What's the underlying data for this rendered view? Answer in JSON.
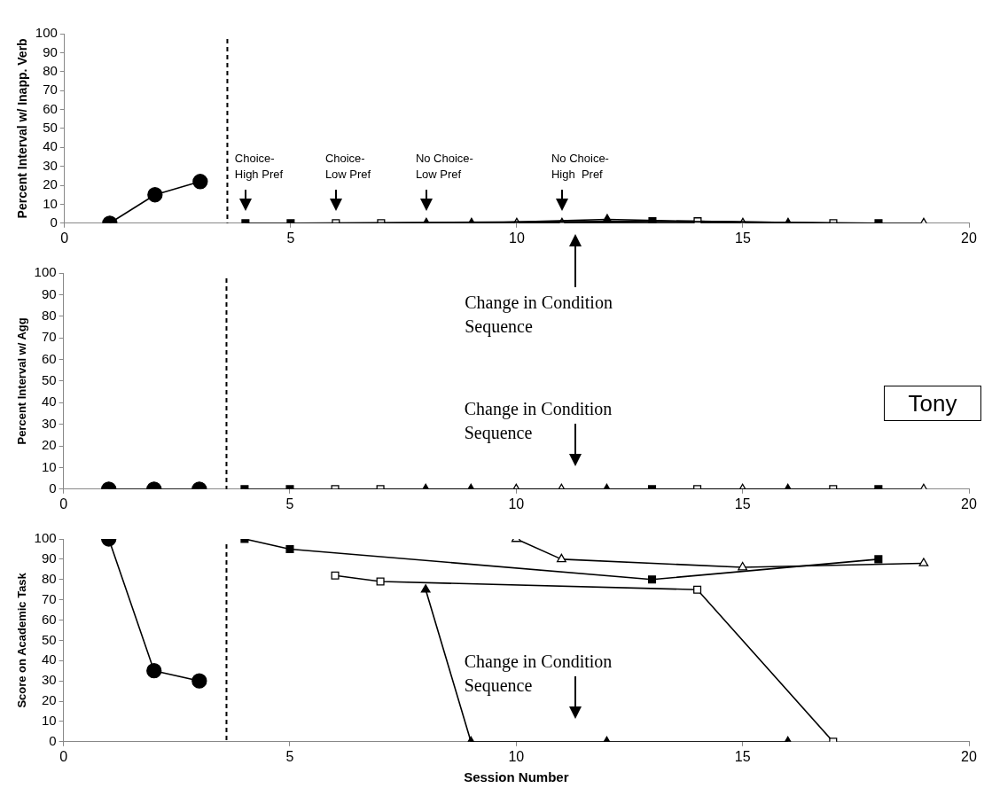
{
  "chart_data": [
    {
      "type": "line",
      "ylabel": "Percent Interval w/ Inapp. Verb",
      "xlim": [
        0,
        20
      ],
      "xticks": [
        0,
        5,
        10,
        15,
        20
      ],
      "ylim": [
        0,
        100
      ],
      "yticks": [
        0,
        10,
        20,
        30,
        40,
        50,
        60,
        70,
        80,
        90,
        100
      ],
      "grid": false,
      "legend": false,
      "line_style": "solid",
      "series": [
        {
          "color": "#000000",
          "marker": "circle",
          "x": [
            1,
            2,
            3
          ],
          "values": [
            0,
            15,
            22
          ]
        },
        {
          "color": "#000000",
          "marker": "square",
          "x": [
            4,
            5,
            13,
            18
          ],
          "values": [
            0,
            0,
            1,
            0
          ]
        },
        {
          "color": "#ffffff",
          "marker": "square",
          "x": [
            6,
            7,
            14,
            17
          ],
          "values": [
            0,
            0,
            1,
            0
          ]
        },
        {
          "color": "#000000",
          "marker": "triangle",
          "x": [
            8,
            9,
            12,
            16
          ],
          "values": [
            0,
            0,
            2,
            0
          ]
        },
        {
          "color": "#ffffff",
          "marker": "triangle",
          "x": [
            10,
            11,
            15,
            19
          ],
          "values": [
            0,
            0,
            0,
            0
          ]
        }
      ],
      "ref_lines": [
        {
          "axis": "x",
          "value": 3.6,
          "line_style": "dashed"
        }
      ],
      "annotations": [
        "Choice-\nHigh Pref",
        "Choice-\nLow Pref",
        "No Choice-\nLow Pref",
        "No Choice-\nHigh  Pref",
        "Change in Condition Sequence"
      ]
    },
    {
      "type": "line",
      "title": "Tony",
      "ylabel": "Percent Interval w/ Agg",
      "xlim": [
        0,
        20
      ],
      "xticks": [
        0,
        5,
        10,
        15,
        20
      ],
      "ylim": [
        0,
        100
      ],
      "yticks": [
        0,
        10,
        20,
        30,
        40,
        50,
        60,
        70,
        80,
        90,
        100
      ],
      "grid": false,
      "legend": false,
      "line_style": "solid",
      "series": [
        {
          "color": "#000000",
          "marker": "circle",
          "x": [
            1,
            2,
            3
          ],
          "values": [
            0,
            0,
            0
          ]
        },
        {
          "color": "#000000",
          "marker": "square",
          "x": [
            4,
            5,
            13,
            18
          ],
          "values": [
            0,
            0,
            0,
            0
          ]
        },
        {
          "color": "#ffffff",
          "marker": "square",
          "x": [
            6,
            7,
            14,
            17
          ],
          "values": [
            0,
            0,
            0,
            0
          ]
        },
        {
          "color": "#000000",
          "marker": "triangle",
          "x": [
            8,
            9,
            12,
            16
          ],
          "values": [
            0,
            0,
            0,
            0
          ]
        },
        {
          "color": "#ffffff",
          "marker": "triangle",
          "x": [
            10,
            11,
            15,
            19
          ],
          "values": [
            0,
            0,
            0,
            0
          ]
        }
      ],
      "ref_lines": [
        {
          "axis": "x",
          "value": 3.6,
          "line_style": "dashed"
        }
      ],
      "annotations": [
        "Change in Condition Sequence"
      ]
    },
    {
      "type": "line",
      "xlabel": "Session Number",
      "ylabel": "Score on Academic Task",
      "xlim": [
        0,
        20
      ],
      "xticks": [
        0,
        5,
        10,
        15,
        20
      ],
      "ylim": [
        0,
        100
      ],
      "yticks": [
        0,
        10,
        20,
        30,
        40,
        50,
        60,
        70,
        80,
        90,
        100
      ],
      "grid": false,
      "legend": false,
      "line_style": "solid",
      "series": [
        {
          "color": "#000000",
          "marker": "circle",
          "x": [
            1,
            2,
            3
          ],
          "values": [
            100,
            35,
            30
          ]
        },
        {
          "color": "#000000",
          "marker": "square",
          "x": [
            4,
            5,
            13,
            18
          ],
          "values": [
            100,
            95,
            80,
            90
          ]
        },
        {
          "color": "#ffffff",
          "marker": "square",
          "x": [
            6,
            7,
            14,
            17
          ],
          "values": [
            82,
            79,
            75,
            0
          ]
        },
        {
          "color": "#000000",
          "marker": "triangle",
          "x": [
            8,
            9,
            12,
            16
          ],
          "values": [
            75,
            0,
            0,
            0
          ]
        },
        {
          "color": "#ffffff",
          "marker": "triangle",
          "x": [
            10,
            11,
            15,
            19
          ],
          "values": [
            100,
            90,
            86,
            88
          ]
        }
      ],
      "ref_lines": [
        {
          "axis": "x",
          "value": 3.6,
          "line_style": "dashed"
        }
      ],
      "annotations": [
        "Change in Condition Sequence"
      ]
    }
  ]
}
